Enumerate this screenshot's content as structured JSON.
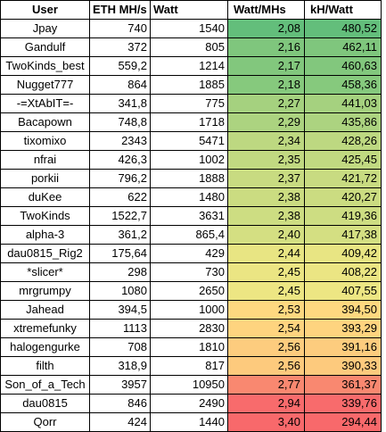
{
  "table": {
    "headers": [
      "User",
      "ETH MH/s",
      "Watt",
      "Watt/MHs",
      "kH/Watt"
    ],
    "rows": [
      {
        "user": "Jpay",
        "eth": "740",
        "watt": "1540",
        "wpm": "2,08",
        "khw": "480,52",
        "color": "#63be7b"
      },
      {
        "user": "Gandulf",
        "eth": "372",
        "watt": "805",
        "wpm": "2,16",
        "khw": "462,11",
        "color": "#7fc67d"
      },
      {
        "user": "TwoKinds_best",
        "eth": "559,2",
        "watt": "1214",
        "wpm": "2,17",
        "khw": "460,63",
        "color": "#82c77d"
      },
      {
        "user": "Nugget777",
        "eth": "864",
        "watt": "1885",
        "wpm": "2,18",
        "khw": "458,36",
        "color": "#86c97d"
      },
      {
        "user": "-=XtAbIT=-",
        "eth": "341,8",
        "watt": "775",
        "wpm": "2,27",
        "khw": "441,03",
        "color": "#a5d17f"
      },
      {
        "user": "Bacapown",
        "eth": "748,8",
        "watt": "1718",
        "wpm": "2,29",
        "khw": "435,86",
        "color": "#acd380"
      },
      {
        "user": "tixomixo",
        "eth": "2343",
        "watt": "5471",
        "wpm": "2,34",
        "khw": "428,26",
        "color": "#bdd881"
      },
      {
        "user": "nfrai",
        "eth": "426,3",
        "watt": "1002",
        "wpm": "2,35",
        "khw": "425,45",
        "color": "#c1d981"
      },
      {
        "user": "porkii",
        "eth": "796,2",
        "watt": "1888",
        "wpm": "2,37",
        "khw": "421,72",
        "color": "#c8db81"
      },
      {
        "user": "duKee",
        "eth": "622",
        "watt": "1480",
        "wpm": "2,38",
        "khw": "420,27",
        "color": "#cbdc81"
      },
      {
        "user": "TwoKinds",
        "eth": "1522,7",
        "watt": "3631",
        "wpm": "2,38",
        "khw": "419,36",
        "color": "#cddd82"
      },
      {
        "user": "alpha-3",
        "eth": "361,2",
        "watt": "865,4",
        "wpm": "2,40",
        "khw": "417,38",
        "color": "#d4df82"
      },
      {
        "user": "dau0815_Rig2",
        "eth": "175,64",
        "watt": "429",
        "wpm": "2,44",
        "khw": "409,42",
        "color": "#e8e583"
      },
      {
        "user": "*slicer*",
        "eth": "298",
        "watt": "730",
        "wpm": "2,45",
        "khw": "408,22",
        "color": "#ebe583"
      },
      {
        "user": "mrgrumpy",
        "eth": "1080",
        "watt": "2650",
        "wpm": "2,45",
        "khw": "407,55",
        "color": "#ede683"
      },
      {
        "user": "Jahead",
        "eth": "394,5",
        "watt": "1000",
        "wpm": "2,53",
        "khw": "394,50",
        "color": "#fed880"
      },
      {
        "user": "xtremefunky",
        "eth": "1113",
        "watt": "2830",
        "wpm": "2,54",
        "khw": "393,29",
        "color": "#fed47f"
      },
      {
        "user": "halogengurke",
        "eth": "708",
        "watt": "1810",
        "wpm": "2,56",
        "khw": "391,16",
        "color": "#fdcc7e"
      },
      {
        "user": "filth",
        "eth": "318,9",
        "watt": "817",
        "wpm": "2,56",
        "khw": "390,33",
        "color": "#fdca7d"
      },
      {
        "user": "Son_of_a_Tech",
        "eth": "3957",
        "watt": "10950",
        "wpm": "2,77",
        "khw": "361,37",
        "color": "#f98870"
      },
      {
        "user": "dau0815",
        "eth": "846",
        "watt": "2490",
        "wpm": "2,94",
        "khw": "339,76",
        "color": "#f86b6c"
      },
      {
        "user": "Qorr",
        "eth": "424",
        "watt": "1440",
        "wpm": "3,40",
        "khw": "294,44",
        "color": "#f8696b"
      }
    ]
  }
}
